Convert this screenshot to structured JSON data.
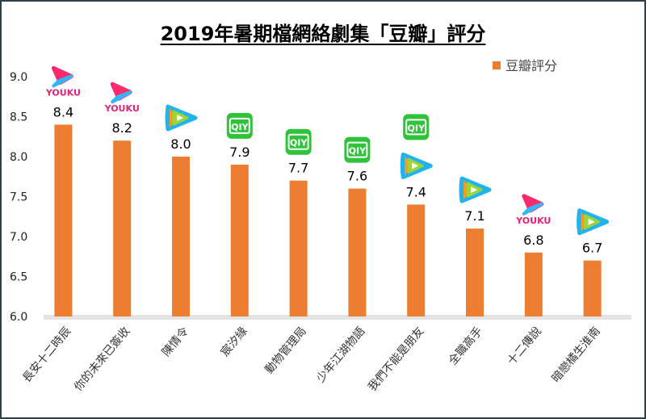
{
  "chart_data": {
    "type": "bar",
    "title": "2019年暑期檔網絡劇集「豆瓣」評分",
    "legend": {
      "label": "豆瓣評分",
      "placement": "top-right"
    },
    "categories": [
      "長安十二時辰",
      "你的未來已簽收",
      "陳情令",
      "宸汐緣",
      "動物管理局",
      "少年江湖物語",
      "我們不能是朋友",
      "全職高手",
      "十二傳說",
      "暗戀橘生淮南"
    ],
    "values": [
      8.4,
      8.2,
      8.0,
      7.9,
      7.7,
      7.6,
      7.4,
      7.1,
      6.8,
      6.7
    ],
    "value_labels": [
      "8.4",
      "8.2",
      "8.0",
      "7.9",
      "7.7",
      "7.6",
      "7.4",
      "7.1",
      "6.8",
      "6.7"
    ],
    "platforms": [
      [
        "youku"
      ],
      [
        "youku"
      ],
      [
        "tencent"
      ],
      [
        "iqiyi"
      ],
      [
        "iqiyi"
      ],
      [
        "iqiyi"
      ],
      [
        "iqiyi",
        "tencent"
      ],
      [
        "tencent"
      ],
      [
        "youku"
      ],
      [
        "tencent"
      ]
    ],
    "ylim": [
      6.0,
      9.0
    ],
    "yticks": [
      "6.0",
      "6.5",
      "7.0",
      "7.5",
      "8.0",
      "8.5",
      "9.0"
    ],
    "xlabel": "",
    "ylabel": "",
    "grid": false,
    "bar_color": "#ed7d31",
    "logo_text": {
      "youku": "YOUKU",
      "iqiyi": "QIY"
    }
  }
}
